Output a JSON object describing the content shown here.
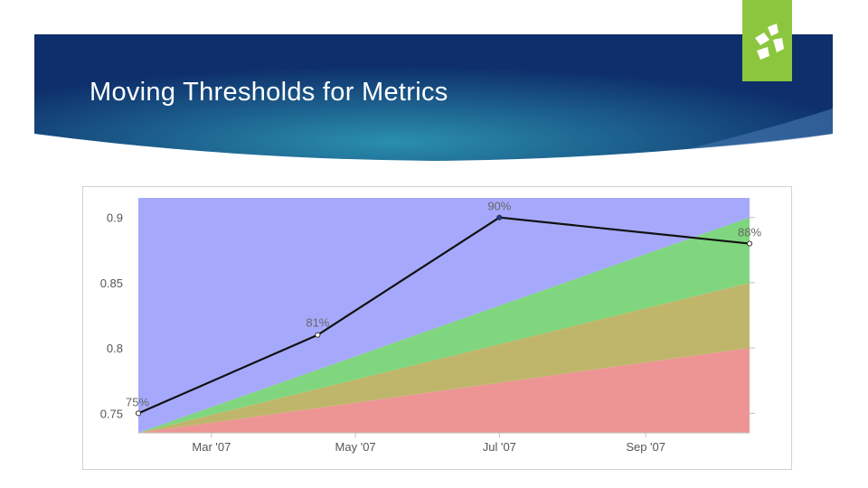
{
  "slide": {
    "title": "Moving Thresholds for Metrics"
  },
  "colors": {
    "banner_dark": "#0e2f6b",
    "banner_light": "#2a8fae",
    "logo_green": "#8cc63f",
    "band_blue": "#a6a9fb",
    "band_green": "#7fd67e",
    "band_olive": "#c0b66b",
    "band_red": "#ed9595",
    "line": "#111111"
  },
  "logo": {
    "icon": "company-logo-icon"
  },
  "chart_data": {
    "type": "area",
    "x_ticks": [
      {
        "label": "Mar '07",
        "date": "2007-03-01"
      },
      {
        "label": "May '07",
        "date": "2007-05-01"
      },
      {
        "label": "Jul '07",
        "date": "2007-07-01"
      },
      {
        "label": "Sep '07",
        "date": "2007-09-01"
      }
    ],
    "x_range": [
      "2007-01-29",
      "2007-10-15"
    ],
    "y_ticks": [
      0.75,
      0.8,
      0.85,
      0.9
    ],
    "y_tick_labels": [
      "0.75",
      "0.8",
      "0.85",
      "0.9"
    ],
    "ylim": [
      0.735,
      0.915
    ],
    "grid": false,
    "thresholds": {
      "dates": [
        "2007-01-29",
        "2007-10-15"
      ],
      "bands": [
        {
          "color": "#ed9595",
          "lower": [
            0.735,
            0.735
          ],
          "upper": [
            0.735,
            0.8
          ]
        },
        {
          "color": "#c0b66b",
          "lower": [
            0.735,
            0.8
          ],
          "upper": [
            0.735,
            0.85
          ]
        },
        {
          "color": "#7fd67e",
          "lower": [
            0.735,
            0.85
          ],
          "upper": [
            0.735,
            0.9
          ]
        },
        {
          "color": "#a6a9fb",
          "lower": [
            0.735,
            0.9
          ],
          "upper": [
            0.915,
            0.915
          ]
        }
      ]
    },
    "series": [
      {
        "points": [
          {
            "date": "2007-01-29",
            "value": 0.75,
            "label": "75%"
          },
          {
            "date": "2007-04-15",
            "value": 0.81,
            "label": "81%"
          },
          {
            "date": "2007-07-01",
            "value": 0.9,
            "label": "90%"
          },
          {
            "date": "2007-10-15",
            "value": 0.88,
            "label": "88%"
          }
        ]
      }
    ]
  }
}
